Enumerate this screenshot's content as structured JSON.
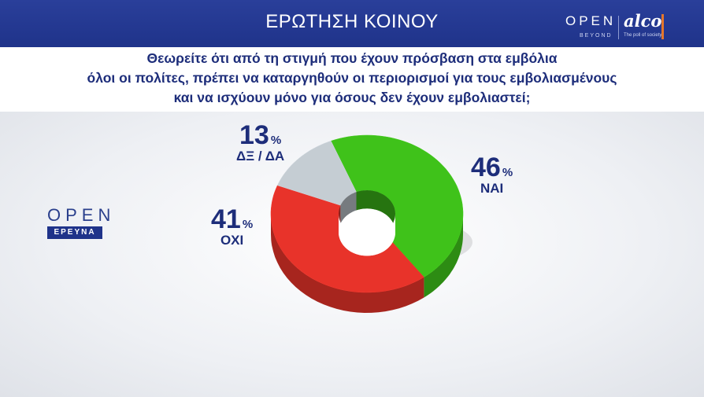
{
  "header": {
    "title": "ΕΡΩΤΗΣΗ ΚΟΙΝΟΥ"
  },
  "logos": {
    "open": "OPEN",
    "beyond": "BEYOND",
    "alco": "alco",
    "alco_tagline": "The poll of society",
    "ereyna": "ΕΡΕΥΝΑ"
  },
  "question": {
    "lines": [
      "Θεωρείτε ότι από τη στιγμή που έχουν πρόσβαση στα εμβόλια",
      "όλοι οι πολίτες, πρέπει να καταργηθούν οι περιορισμοί για  τους εμβολιασμένους",
      "και να ισχύουν μόνο για όσους δεν έχουν εμβολιαστεί;"
    ]
  },
  "chart_data": {
    "type": "pie",
    "style": "3d-donut",
    "categories": [
      "ΝΑΙ",
      "ΟΧΙ",
      "ΔΞ / ΔΑ"
    ],
    "values": [
      46,
      41,
      13
    ],
    "value_labels": [
      "46",
      "41",
      "13"
    ],
    "unit": "%",
    "colors": [
      "#3fc21a",
      "#e8332a",
      "#c5cdd3"
    ]
  }
}
